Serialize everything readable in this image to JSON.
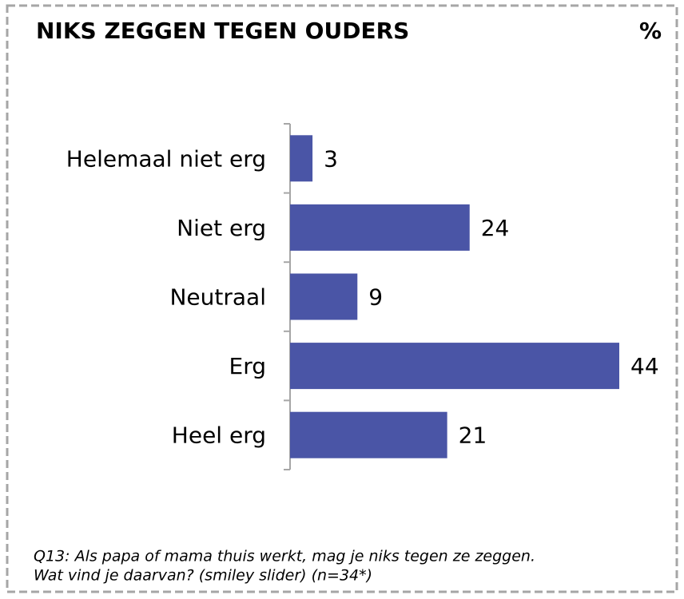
{
  "chart_data": {
    "type": "bar",
    "orientation": "horizontal",
    "title": "NIKS ZEGGEN TEGEN OUDERS",
    "unit_label": "%",
    "categories": [
      "Helemaal niet erg",
      "Niet erg",
      "Neutraal",
      "Erg",
      "Heel erg"
    ],
    "values": [
      3,
      24,
      9,
      44,
      21
    ],
    "color": "#4a55a6",
    "note": [
      "Q13: Als papa of mama thuis werkt, mag je niks tegen ze zeggen.",
      "Wat vind je daarvan? (smiley slider) (n=34*)"
    ]
  }
}
